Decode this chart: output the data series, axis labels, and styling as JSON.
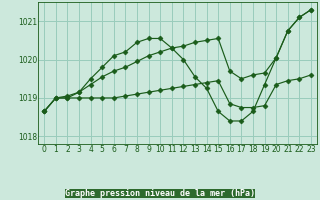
{
  "title": "Graphe pression niveau de la mer (hPa)",
  "background_color": "#cce8dc",
  "plot_bg_color": "#cce8dc",
  "label_bg_color": "#2d6a2d",
  "grid_color": "#99ccbb",
  "line_color": "#1a5c1a",
  "label_text_color": "#ffffff",
  "xlim": [
    -0.5,
    23.5
  ],
  "ylim": [
    1017.8,
    1021.5
  ],
  "yticks": [
    1018,
    1019,
    1020,
    1021
  ],
  "xticks": [
    0,
    1,
    2,
    3,
    4,
    5,
    6,
    7,
    8,
    9,
    10,
    11,
    12,
    13,
    14,
    15,
    16,
    17,
    18,
    19,
    20,
    21,
    22,
    23
  ],
  "series": [
    {
      "x": [
        0,
        1,
        2,
        3,
        4,
        5,
        6,
        7,
        8,
        9,
        10,
        11,
        12,
        13,
        14,
        15,
        16,
        17,
        18,
        19,
        20,
        21,
        22,
        23
      ],
      "y": [
        1018.65,
        1019.0,
        1019.0,
        1019.15,
        1019.5,
        1019.8,
        1020.1,
        1020.2,
        1020.45,
        1020.55,
        1020.55,
        1020.3,
        1020.0,
        1019.55,
        1019.25,
        1018.65,
        1018.4,
        1018.4,
        1018.65,
        1019.35,
        1020.05,
        1020.75,
        1021.1,
        1021.3
      ],
      "marker": "D",
      "markersize": 2.5
    },
    {
      "x": [
        0,
        1,
        2,
        3,
        4,
        5,
        6,
        7,
        8,
        9,
        10,
        11,
        12,
        13,
        14,
        15,
        16,
        17,
        18,
        19,
        20,
        21,
        22,
        23
      ],
      "y": [
        1018.65,
        1019.0,
        1019.0,
        1019.0,
        1019.0,
        1019.0,
        1019.0,
        1019.05,
        1019.1,
        1019.15,
        1019.2,
        1019.25,
        1019.3,
        1019.35,
        1019.4,
        1019.45,
        1018.85,
        1018.75,
        1018.75,
        1018.8,
        1019.35,
        1019.45,
        1019.5,
        1019.6
      ],
      "marker": "D",
      "markersize": 2.5
    },
    {
      "x": [
        0,
        1,
        2,
        3,
        4,
        5,
        6,
        7,
        8,
        9,
        10,
        11,
        12,
        13,
        14,
        15,
        16,
        17,
        18,
        19,
        20,
        21,
        22,
        23
      ],
      "y": [
        1018.65,
        1019.0,
        1019.05,
        1019.15,
        1019.35,
        1019.55,
        1019.7,
        1019.8,
        1019.95,
        1020.1,
        1020.2,
        1020.3,
        1020.35,
        1020.45,
        1020.5,
        1020.55,
        1019.7,
        1019.5,
        1019.6,
        1019.65,
        1020.05,
        1020.75,
        1021.1,
        1021.3
      ],
      "marker": "D",
      "markersize": 2.5
    }
  ]
}
